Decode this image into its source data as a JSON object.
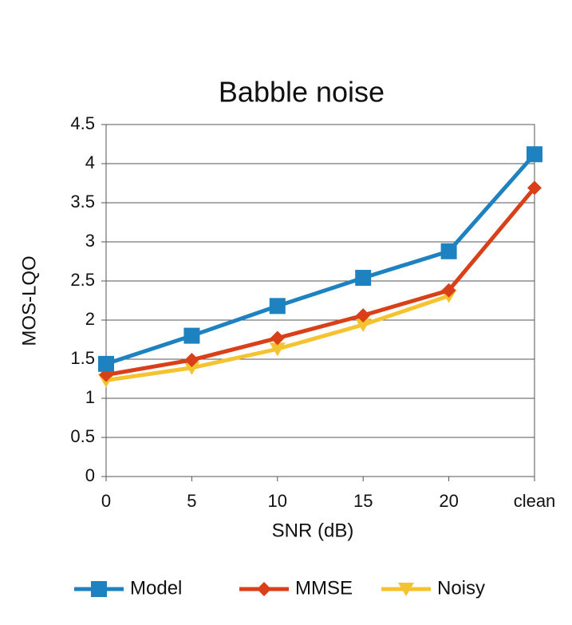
{
  "chart_data": {
    "type": "line",
    "title": "Babble noise",
    "x_label": "SNR (dB)",
    "y_label": "MOS-LQO",
    "categories": [
      "0",
      "5",
      "10",
      "15",
      "20",
      "clean"
    ],
    "series": [
      {
        "name": "Model",
        "color": "#1f82c0",
        "marker": "square",
        "values": [
          1.44,
          1.8,
          2.18,
          2.54,
          2.88,
          4.12
        ]
      },
      {
        "name": "MMSE",
        "color": "#d9401a",
        "marker": "diamond",
        "values": [
          1.3,
          1.49,
          1.77,
          2.06,
          2.38,
          3.69
        ]
      },
      {
        "name": "Noisy",
        "color": "#f5c330",
        "marker": "triangle-down",
        "values": [
          1.23,
          1.39,
          1.63,
          1.94,
          2.31,
          null
        ]
      }
    ],
    "ylim": [
      0,
      4.5
    ],
    "yticks": [
      0,
      0.5,
      1,
      1.5,
      2,
      2.5,
      3,
      3.5,
      4,
      4.5
    ],
    "grid": true,
    "legend": "bottom"
  }
}
